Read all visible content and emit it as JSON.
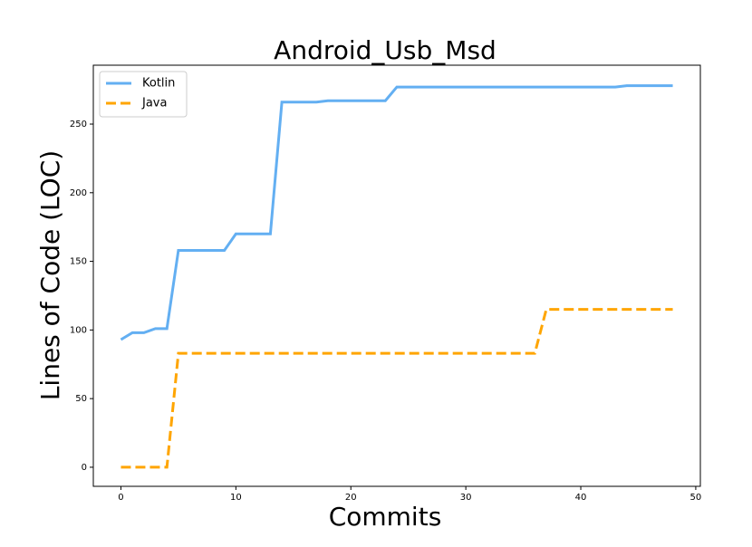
{
  "chart_data": {
    "type": "line",
    "title": "Android_Usb_Msd",
    "x_label": "Commits",
    "y_label": "Lines of Code (LOC)",
    "x": [
      0,
      1,
      2,
      3,
      4,
      5,
      6,
      7,
      8,
      9,
      10,
      11,
      12,
      13,
      14,
      15,
      16,
      17,
      18,
      19,
      20,
      21,
      22,
      23,
      24,
      25,
      26,
      27,
      28,
      29,
      30,
      31,
      32,
      33,
      34,
      35,
      36,
      37,
      38,
      39,
      40,
      41,
      42,
      43,
      44,
      45,
      46,
      47,
      48
    ],
    "series": [
      {
        "name": "Kotlin",
        "color": "#63aff2",
        "dash": false,
        "values": [
          93,
          98,
          98,
          101,
          101,
          158,
          158,
          158,
          158,
          158,
          170,
          170,
          170,
          170,
          266,
          266,
          266,
          266,
          267,
          267,
          267,
          267,
          267,
          267,
          277,
          277,
          277,
          277,
          277,
          277,
          277,
          277,
          277,
          277,
          277,
          277,
          277,
          277,
          277,
          277,
          277,
          277,
          277,
          277,
          278,
          278,
          278,
          278,
          278
        ]
      },
      {
        "name": "Java",
        "color": "#ffa500",
        "dash": true,
        "values": [
          0,
          0,
          0,
          0,
          0,
          83,
          83,
          83,
          83,
          83,
          83,
          83,
          83,
          83,
          83,
          83,
          83,
          83,
          83,
          83,
          83,
          83,
          83,
          83,
          83,
          83,
          83,
          83,
          83,
          83,
          83,
          83,
          83,
          83,
          83,
          83,
          83,
          115,
          115,
          115,
          115,
          115,
          115,
          115,
          115,
          115,
          115,
          115,
          115
        ]
      }
    ],
    "xlim": [
      -2.4,
      50.4
    ],
    "ylim": [
      -13.9,
      292.9
    ],
    "xticks": [
      0,
      10,
      20,
      30,
      40,
      50
    ],
    "yticks": [
      0,
      50,
      100,
      150,
      200,
      250
    ],
    "legend": "upper left"
  }
}
